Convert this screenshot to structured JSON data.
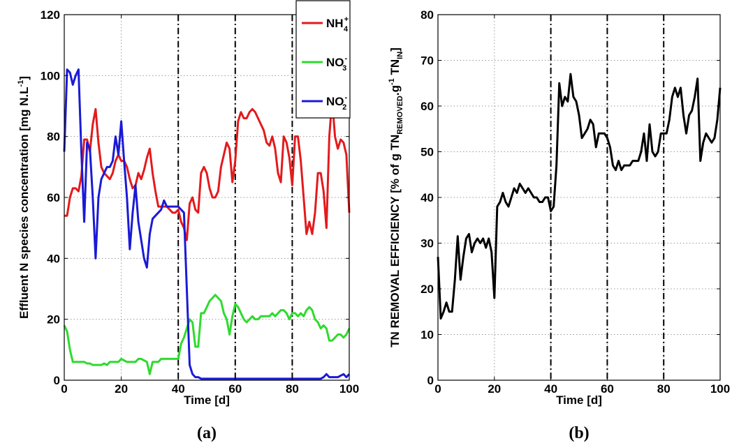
{
  "chart_data": [
    {
      "type": "line",
      "panel_label": "(a)",
      "xlabel": "Time [d]",
      "ylabel": "Effluent N species concentration [mg N.L-1]",
      "ylabel_parts": {
        "main": "Effluent N species concentration [mg N.L",
        "sup": "-1",
        "end": "]"
      },
      "xlim": [
        0,
        100
      ],
      "ylim": [
        0,
        120
      ],
      "xticks": [
        0,
        20,
        40,
        60,
        80,
        100
      ],
      "yticks": [
        0,
        20,
        40,
        60,
        80,
        100,
        120
      ],
      "grid": true,
      "legend_position": "top-right",
      "vlines": [
        40,
        60,
        80
      ],
      "series": [
        {
          "name": "NH4+",
          "name_parts": {
            "base": "NH",
            "sub": "4",
            "sup": "+"
          },
          "color": "#e31a1c",
          "x": [
            0,
            1,
            2,
            3,
            4,
            5,
            6,
            7,
            8,
            9,
            10,
            11,
            12,
            13,
            14,
            15,
            16,
            17,
            18,
            19,
            20,
            21,
            22,
            23,
            24,
            25,
            26,
            27,
            28,
            29,
            30,
            31,
            32,
            33,
            34,
            35,
            36,
            37,
            38,
            39,
            40,
            41,
            42,
            43,
            44,
            45,
            46,
            47,
            48,
            49,
            50,
            51,
            52,
            53,
            54,
            55,
            56,
            57,
            58,
            59,
            60,
            61,
            62,
            63,
            64,
            65,
            66,
            67,
            68,
            69,
            70,
            71,
            72,
            73,
            74,
            75,
            76,
            77,
            78,
            79,
            80,
            81,
            82,
            83,
            84,
            85,
            86,
            87,
            88,
            89,
            90,
            91,
            92,
            93,
            94,
            95,
            96,
            97,
            98,
            99,
            100
          ],
          "y": [
            54,
            54,
            60,
            63,
            63,
            62,
            67,
            79,
            79,
            75,
            84,
            89,
            78,
            70,
            68,
            67,
            66,
            68,
            72,
            74,
            72,
            72,
            70,
            66,
            63,
            64,
            68,
            66,
            69,
            73,
            76,
            68,
            62,
            57,
            57,
            57,
            57,
            56,
            55,
            55,
            56,
            52,
            50,
            46,
            58,
            60,
            56,
            55,
            68,
            70,
            68,
            63,
            60,
            60,
            62,
            70,
            74,
            78,
            76,
            65,
            72,
            85,
            88,
            86,
            86,
            88,
            89,
            88,
            86,
            84,
            82,
            78,
            77,
            80,
            76,
            68,
            65,
            80,
            78,
            73,
            64,
            80,
            80,
            72,
            60,
            48,
            52,
            48,
            55,
            68,
            68,
            62,
            50,
            80,
            92,
            80,
            76,
            79,
            78,
            74,
            55
          ]
        },
        {
          "name": "NO3-",
          "name_parts": {
            "base": "NO",
            "sub": "3",
            "sup": "-"
          },
          "color": "#2edb2e",
          "x": [
            0,
            1,
            2,
            3,
            4,
            5,
            6,
            7,
            8,
            9,
            10,
            11,
            12,
            13,
            14,
            15,
            16,
            17,
            18,
            19,
            20,
            21,
            22,
            23,
            24,
            25,
            26,
            27,
            28,
            29,
            30,
            31,
            32,
            33,
            34,
            35,
            36,
            37,
            38,
            39,
            40,
            41,
            42,
            43,
            44,
            45,
            46,
            47,
            48,
            49,
            50,
            51,
            52,
            53,
            54,
            55,
            56,
            57,
            58,
            59,
            60,
            61,
            62,
            63,
            64,
            65,
            66,
            67,
            68,
            69,
            70,
            71,
            72,
            73,
            74,
            75,
            76,
            77,
            78,
            79,
            80,
            81,
            82,
            83,
            84,
            85,
            86,
            87,
            88,
            89,
            90,
            91,
            92,
            93,
            94,
            95,
            96,
            97,
            98,
            99,
            100
          ],
          "y": [
            18,
            16,
            10,
            6,
            6,
            6,
            6,
            6,
            5.5,
            5.5,
            5,
            5,
            5,
            5,
            5.5,
            5,
            6,
            6,
            6,
            6,
            7,
            6.5,
            6,
            6,
            6,
            6,
            7,
            7,
            6.5,
            6,
            2,
            6,
            6,
            6,
            7,
            7,
            7,
            7,
            7,
            7,
            7,
            12,
            14,
            17,
            20,
            19,
            11,
            11,
            22,
            22,
            24,
            26,
            27,
            28,
            27,
            26,
            22,
            20,
            15,
            21,
            25,
            24,
            22,
            20,
            19,
            20,
            21,
            20,
            20,
            21,
            21,
            21,
            21,
            22,
            21,
            22,
            23,
            23,
            22,
            20,
            22,
            22,
            21,
            22,
            21,
            23,
            24,
            23,
            20,
            19,
            17,
            18,
            17,
            13,
            13,
            14,
            15,
            15,
            14,
            15,
            17
          ]
        },
        {
          "name": "NO2-",
          "name_parts": {
            "base": "NO",
            "sub": "2",
            "sup": "-"
          },
          "color": "#1a1ad6",
          "x": [
            0,
            1,
            2,
            3,
            4,
            5,
            6,
            7,
            8,
            9,
            10,
            11,
            12,
            13,
            14,
            15,
            16,
            17,
            18,
            19,
            20,
            21,
            22,
            23,
            24,
            25,
            26,
            27,
            28,
            29,
            30,
            31,
            32,
            33,
            34,
            35,
            36,
            37,
            38,
            39,
            40,
            41,
            42,
            43,
            44,
            45,
            46,
            47,
            48,
            49,
            50,
            51,
            52,
            53,
            54,
            55,
            56,
            57,
            58,
            59,
            60,
            61,
            62,
            63,
            64,
            65,
            66,
            67,
            68,
            69,
            70,
            71,
            72,
            73,
            74,
            75,
            76,
            77,
            78,
            79,
            80,
            81,
            82,
            83,
            84,
            85,
            86,
            87,
            88,
            89,
            90,
            91,
            92,
            93,
            94,
            95,
            96,
            97,
            98,
            99,
            100
          ],
          "y": [
            75,
            102,
            101,
            97,
            100,
            102,
            75,
            52,
            78,
            76,
            60,
            40,
            60,
            66,
            68,
            70,
            70,
            72,
            80,
            74,
            85,
            72,
            60,
            43,
            55,
            64,
            52,
            46,
            40,
            37,
            48,
            53,
            54,
            55,
            56,
            59,
            57,
            57,
            57,
            57,
            57,
            56,
            55,
            30,
            5,
            2,
            1,
            1,
            0.5,
            0.5,
            0.5,
            0.5,
            0.5,
            0.5,
            0.5,
            0.5,
            0.5,
            0.5,
            0.5,
            0.5,
            0.5,
            0.5,
            0.5,
            0.5,
            0.5,
            0.5,
            0.5,
            0.5,
            0.5,
            0.5,
            0.5,
            0.5,
            0.5,
            0.5,
            0.5,
            0.5,
            0.5,
            0.5,
            0.5,
            0.5,
            0.5,
            0.5,
            0.5,
            0.5,
            0.5,
            0.5,
            0.5,
            0.5,
            0.5,
            0.5,
            0.5,
            1,
            2,
            1,
            1,
            1,
            1,
            1.5,
            2,
            1,
            2
          ]
        }
      ]
    },
    {
      "type": "line",
      "panel_label": "(b)",
      "xlabel": "Time [d]",
      "ylabel": "TN REMOVAL EFFICIENCY [% of g TN REMOVED.g-1 TN IN]",
      "ylabel_parts": {
        "a": "TN REMOVAL EFFICIENCY [% of g TN",
        "sub1": "REMOVED",
        "b": ".g",
        "sup": "-1",
        "c": " TN",
        "sub2": "IN",
        "d": "]"
      },
      "xlim": [
        0,
        100
      ],
      "ylim": [
        0,
        80
      ],
      "xticks": [
        0,
        20,
        40,
        60,
        80,
        100
      ],
      "yticks": [
        0,
        10,
        20,
        30,
        40,
        50,
        60,
        70,
        80
      ],
      "grid": true,
      "vlines": [
        40,
        60,
        80
      ],
      "series": [
        {
          "color": "#000000",
          "x": [
            0,
            1,
            2,
            3,
            4,
            5,
            6,
            7,
            8,
            9,
            10,
            11,
            12,
            13,
            14,
            15,
            16,
            17,
            18,
            19,
            20,
            21,
            22,
            23,
            24,
            25,
            26,
            27,
            28,
            29,
            30,
            31,
            32,
            33,
            34,
            35,
            36,
            37,
            38,
            39,
            40,
            41,
            42,
            43,
            44,
            45,
            46,
            47,
            48,
            49,
            50,
            51,
            52,
            53,
            54,
            55,
            56,
            57,
            58,
            59,
            60,
            61,
            62,
            63,
            64,
            65,
            66,
            67,
            68,
            69,
            70,
            71,
            72,
            73,
            74,
            75,
            76,
            77,
            78,
            79,
            80,
            81,
            82,
            83,
            84,
            85,
            86,
            87,
            88,
            89,
            90,
            91,
            92,
            93,
            94,
            95,
            96,
            97,
            98,
            99,
            100
          ],
          "y": [
            27,
            13.5,
            15,
            17,
            15,
            15,
            22,
            31.5,
            22,
            27,
            31,
            32,
            28,
            30,
            31,
            30,
            31,
            29,
            31,
            28,
            18,
            38,
            39,
            41,
            39,
            38,
            40,
            42,
            41,
            43,
            42,
            41,
            42,
            41,
            40,
            40,
            39,
            39,
            40,
            40,
            37,
            38,
            47,
            65,
            60,
            62,
            61,
            67,
            62,
            61,
            58,
            53,
            54,
            55,
            57,
            56,
            51,
            54,
            54,
            54,
            53,
            51,
            47,
            46,
            48,
            46,
            47,
            47,
            47,
            48,
            48,
            48,
            50,
            54,
            48,
            56,
            50,
            49,
            50,
            54,
            54,
            54,
            57,
            62,
            64,
            62,
            64,
            58,
            54,
            58,
            59,
            62,
            66,
            48,
            52,
            54,
            53,
            52,
            53,
            57,
            64
          ]
        }
      ]
    }
  ]
}
